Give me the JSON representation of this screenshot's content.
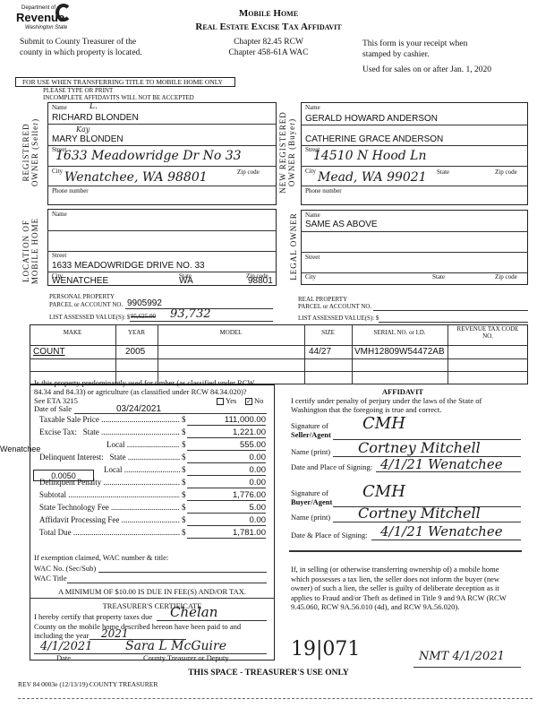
{
  "header": {
    "logo_dept": "Department of",
    "logo_name": "Revenue",
    "logo_state": "Washington State",
    "title1": "Mobile Home",
    "title2": "Real Estate Excise Tax Affidavit",
    "submit_line1": "Submit to County Treasurer of the",
    "submit_line2": "county in which property is located.",
    "chapter1": "Chapter 82.45 RCW",
    "chapter2": "Chapter 458-61A WAC",
    "receipt1": "This form is your receipt when",
    "receipt2": "stamped by cashier.",
    "used_for": "Used for sales on or after Jan. 1, 2020"
  },
  "notice": {
    "box": "FOR USE WHEN TRANSFERRING TITLE TO MOBILE HOME ONLY",
    "type": "PLEASE TYPE OR PRINT",
    "incomplete": "INCOMPLETE AFFIDAVITS WILL NOT BE ACCEPTED"
  },
  "labels": {
    "name": "Name",
    "street": "Street",
    "city": "City",
    "state": "State",
    "zip": "Zip code",
    "phone": "Phone number"
  },
  "seller": {
    "side_label1": "REGISTERED",
    "side_label2": "OWNER (Seller)",
    "name1": "RICHARD BLONDEN",
    "name1_hand": "L.",
    "name2": "MARY BLONDEN",
    "name2_hand": "Kay",
    "street": "1633 Meadowridge Dr No 33",
    "city": "Wenatchee, WA 98801"
  },
  "buyer": {
    "side_label1": "NEW REGISTERED",
    "side_label2": "OWNER (Buyer)",
    "name1": "GERALD HOWARD ANDERSON",
    "name2": "CATHERINE GRACE ANDERSON",
    "street": "14510 N Hood Ln",
    "city": "Mead, WA 99021"
  },
  "location": {
    "side_label1": "LOCATION OF",
    "side_label2": "MOBILE HOME",
    "street": "1633 MEADOWRIDGE DRIVE NO. 33",
    "city": "WENATCHEE",
    "state": "WA",
    "zip": "98801"
  },
  "legal": {
    "side_label": "LEGAL OWNER",
    "name": "SAME AS ABOVE"
  },
  "parcel": {
    "personal_label1": "PERSONAL PROPERTY",
    "parcel_label": "PARCEL or ACCOUNT NO.",
    "personal_no": "9905992",
    "assessed_label": "LIST ASSESSED VALUE(S): $",
    "assessed_struck": "95,625.00",
    "assessed_hand": "93,732",
    "real_label1": "REAL PROPERTY"
  },
  "vehicle": {
    "headers": [
      "MAKE",
      "YEAR",
      "MODEL",
      "SIZE",
      "SERIAL NO. or I.D.",
      "REVENUE TAX CODE NO."
    ],
    "rows": [
      [
        "COUNT",
        "2005",
        "",
        "44/27",
        "VMH12809W54472AB",
        ""
      ],
      [
        "",
        "",
        "",
        "",
        "",
        ""
      ],
      [
        "",
        "",
        "",
        "",
        "",
        ""
      ]
    ]
  },
  "tax": {
    "question1": "Is this property predominantly used for timber (as classified under RCW",
    "question2": "84.34 and 84.33) or agriculture (as classified under RCW 84.34.020)?",
    "eta": "See ETA 3215",
    "yes": "Yes",
    "no": "No",
    "no_checked": true,
    "date_label": "Date of Sale",
    "date": "03/24/2021",
    "side_note": "Wenatchee",
    "rate": "0.0050",
    "lines": [
      {
        "label": "Taxable Sale Price",
        "value": "111,000.00"
      },
      {
        "label": "Excise Tax:   State",
        "value": "1,221.00"
      },
      {
        "label": "Local",
        "value": "555.00"
      },
      {
        "label": "Delinquent Interest:   State",
        "value": "0.00"
      },
      {
        "label": "Local",
        "value": "0.00"
      },
      {
        "label": "Delinquent Penalty",
        "value": "0.00"
      },
      {
        "label": "Subtotal",
        "value": "1,776.00"
      },
      {
        "label": "State Technology Fee",
        "value": "5.00"
      },
      {
        "label": "Affidavit Processing Fee",
        "value": "0.00"
      },
      {
        "label": "Total Due",
        "value": "1,781.00"
      }
    ],
    "dollar": "$",
    "exemption": "If exemption claimed, WAC number & title:",
    "wac_no": "WAC No. (Sec/Sub)",
    "wac_title": "WAC Title",
    "minimum": "A MINIMUM OF $10.00 IS DUE IN FEE(S) AND/OR TAX."
  },
  "treasurer": {
    "title": "TREASURER'S CERTIFICATE",
    "line1": "I hereby certify that property taxes due",
    "county": "Chelan",
    "line2": "County on the mobile home described hereon have been paid to and",
    "line3": "including the year",
    "year": "2021",
    "date": "4/1/2021",
    "signature": "Sara L McGuire",
    "date_label": "Date",
    "sig_label": "County Treasurer or Deputy"
  },
  "affidavit": {
    "title": "AFFIDAVIT",
    "text1": "I certify under penalty of perjury under the laws of the State of",
    "text2": "Washington that the foregoing is true and correct.",
    "sig_seller_label1": "Signature of",
    "sig_seller_label2": "Seller/Agent",
    "sig_seller": "CMH",
    "name_print_label": "Name (print)",
    "seller_name": "Cortney Mitchell",
    "date_place_label": "Date and Place of Signing:",
    "seller_date_place": "4/1/21  Wenatchee",
    "sig_buyer_label1": "Signature of",
    "sig_buyer_label2": "Buyer/Agent",
    "sig_buyer": "CMH",
    "buyer_name": "Cortney Mitchell",
    "date_place_label2": "Date & Place of Signing:",
    "buyer_date_place": "4/1/21  Wenatchee"
  },
  "lien_notice": [
    "If, in selling (or otherwise transferring ownership of) a mobile home",
    "which possesses a tax lien, the seller does not inform the buyer (new",
    "owner) of such a lien, the seller is guilty of deliberate deception as it",
    "applies to Fraud and/or Theft as defined in Title 9 and 9A RCW (RCW",
    "9.45.060, RCW 9A.56.010 (4d), and RCW 9A.56.020)."
  ],
  "treasurer_use": {
    "number": "19|071",
    "initials_date": "NMT 4/1/2021",
    "label": "THIS SPACE - TREASURER'S USE ONLY"
  },
  "footer": {
    "form_no": "REV 84 0003e (12/13/19) COUNTY TREASURER"
  }
}
